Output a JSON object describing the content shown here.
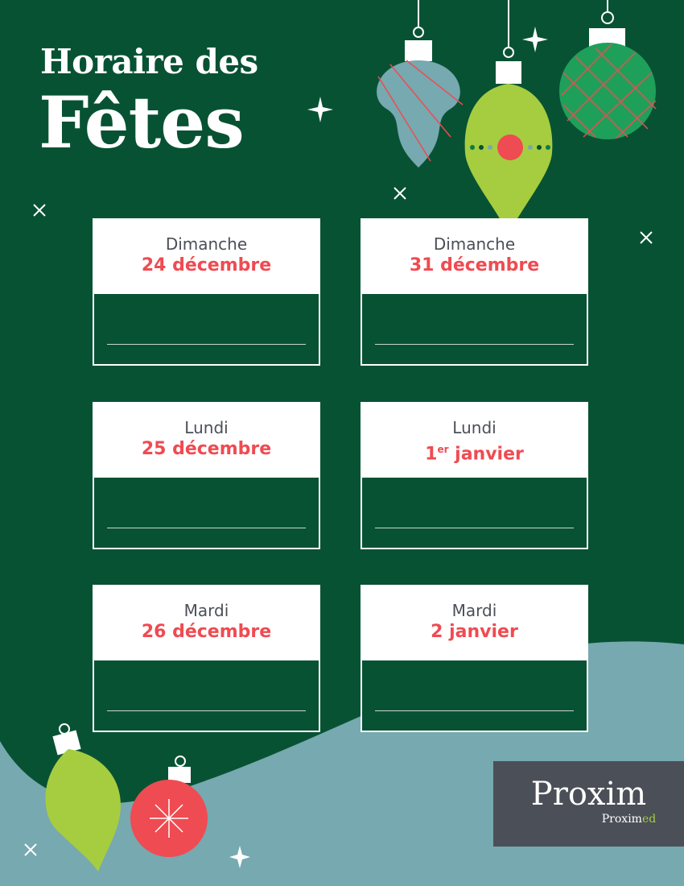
{
  "title": {
    "line1": "Horaire des",
    "line2": "Fêtes"
  },
  "cards": [
    {
      "day": "Dimanche",
      "date": "24 décembre"
    },
    {
      "day": "Dimanche",
      "date": "31 décembre"
    },
    {
      "day": "Lundi",
      "date": "25 décembre"
    },
    {
      "day": "Lundi",
      "date_num": "1",
      "date_sup": "er",
      "date_rest": " janvier"
    },
    {
      "day": "Mardi",
      "date": "26 décembre"
    },
    {
      "day": "Mardi",
      "date": "2 janvier"
    }
  ],
  "logo": {
    "main": "Proxim",
    "sub_prefix": "Proxim",
    "sub_suffix": "ed"
  },
  "colors": {
    "background": "#085234",
    "wave": "#76a9b0",
    "accent_red": "#ef4b52",
    "accent_lime": "#a6cd3f",
    "logo_bg": "#4b4f57"
  }
}
